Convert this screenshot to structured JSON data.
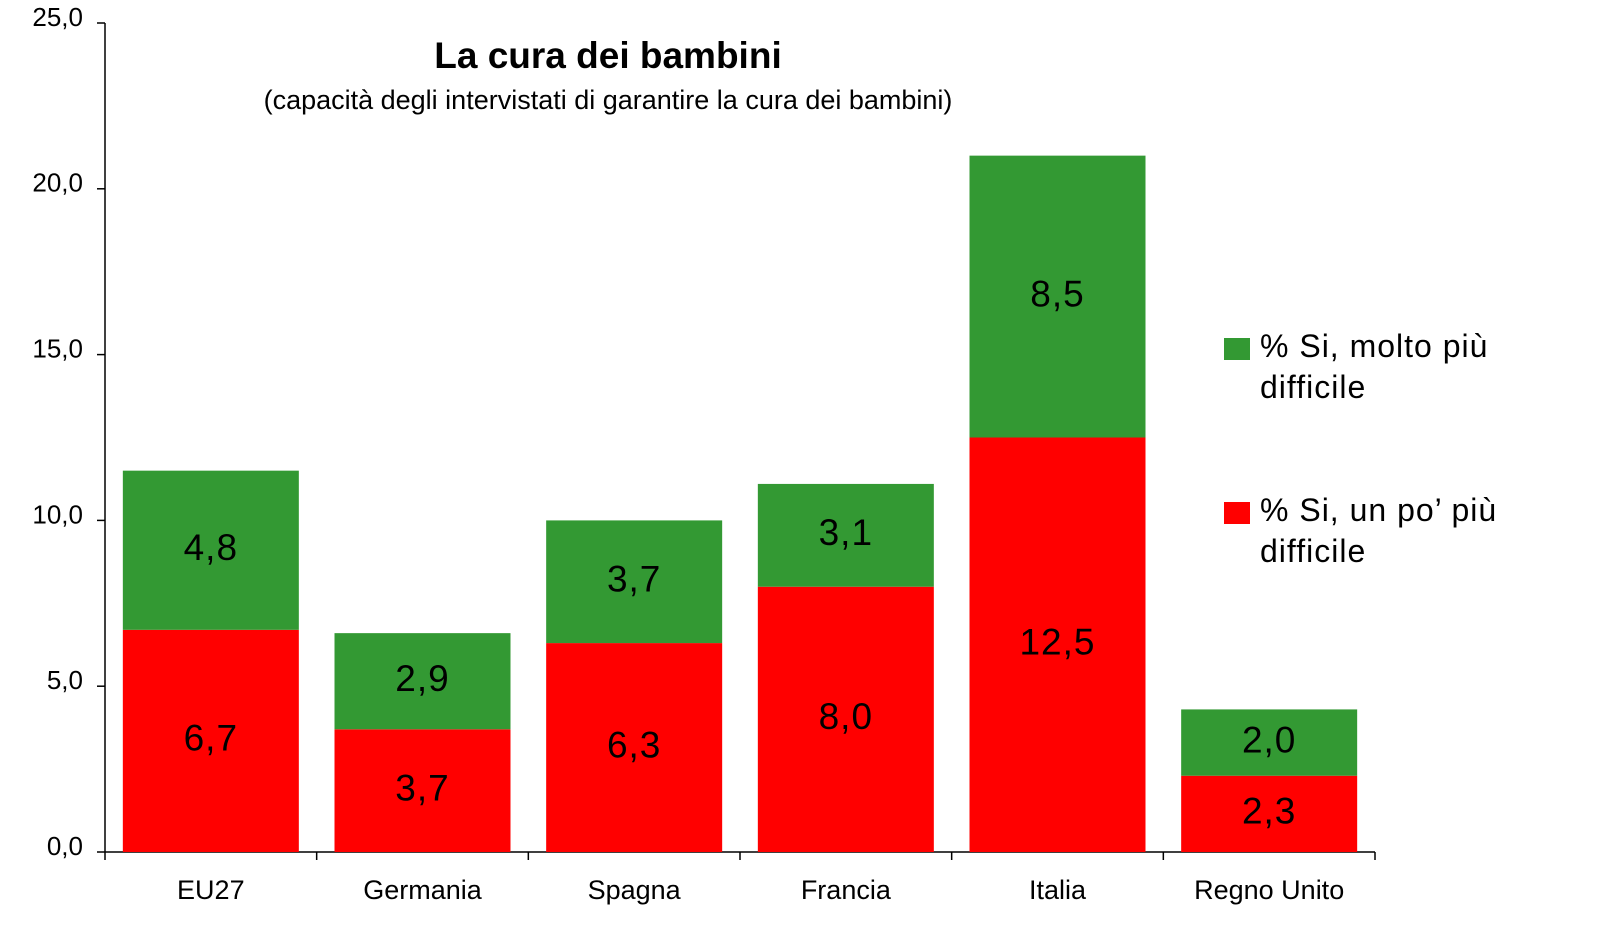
{
  "chart_data": {
    "type": "stacked-bar",
    "title": "La cura dei bambini",
    "subtitle": "(capacità degli intervistati di garantire la cura dei bambini)",
    "categories": [
      "EU27",
      "Germania",
      "Spagna",
      "Francia",
      "Italia",
      "Regno Unito"
    ],
    "series": [
      {
        "name": "% Si, un po’ più difficile",
        "color": "#ff0000",
        "values": [
          6.7,
          3.7,
          6.3,
          8.0,
          12.5,
          2.3
        ],
        "value_labels": [
          "6,7",
          "3,7",
          "6,3",
          "8,0",
          "12,5",
          "2,3"
        ]
      },
      {
        "name": "% Si, molto più difficile",
        "color": "#339933",
        "values": [
          4.8,
          2.9,
          3.7,
          3.1,
          8.5,
          2.0
        ],
        "value_labels": [
          "4,8",
          "2,9",
          "3,7",
          "3,1",
          "8,5",
          "2,0"
        ]
      }
    ],
    "ylim": [
      0,
      25
    ],
    "yticks": [
      {
        "value": 0,
        "label": "0,0"
      },
      {
        "value": 5,
        "label": "5,0"
      },
      {
        "value": 10,
        "label": "10,0"
      },
      {
        "value": 15,
        "label": "15,0"
      },
      {
        "value": 20,
        "label": "20,0"
      },
      {
        "value": 25,
        "label": "25,0"
      }
    ],
    "grid": false
  }
}
